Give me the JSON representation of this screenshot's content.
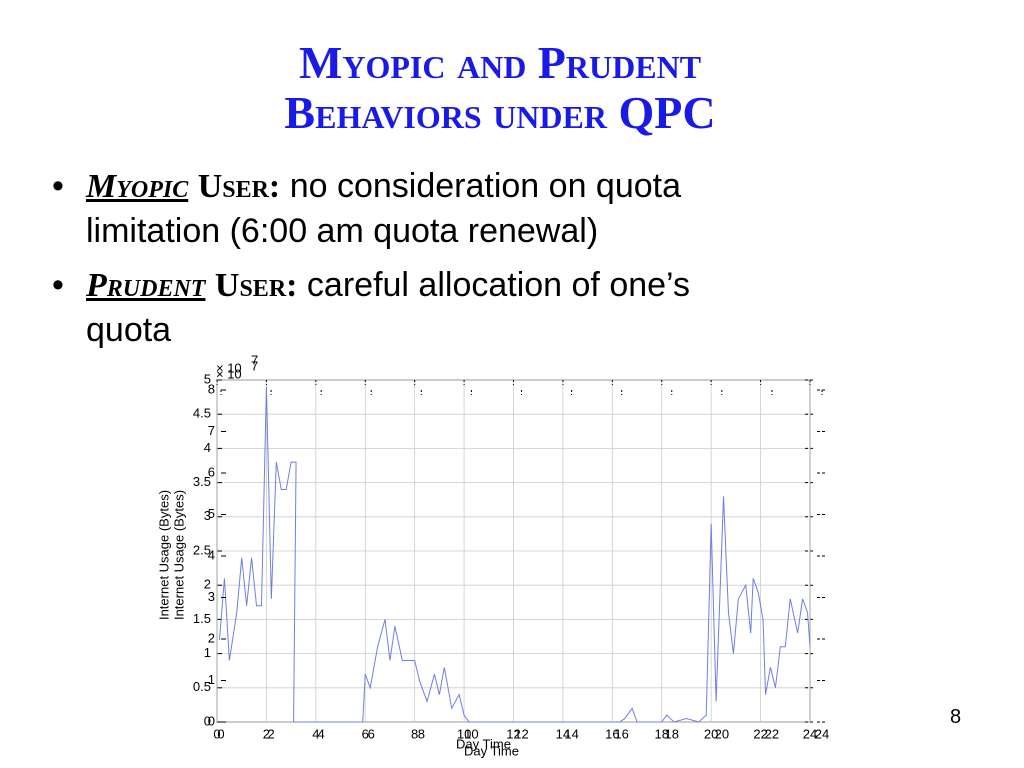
{
  "slide": {
    "title_lines": [
      "Myopic and Prudent",
      "Behaviors under QPC"
    ],
    "bullets": [
      {
        "term": "Myopic",
        "user": "User:",
        "text": " no consideration on quota",
        "text2": "limitation (6:00 am quota renewal)"
      },
      {
        "term": "Prudent",
        "user": "User:",
        "text": " careful allocation of one’s",
        "text2": "quota"
      }
    ],
    "page_number": "8"
  },
  "chart_data": [
    {
      "type": "line",
      "xlabel": "Day Time",
      "ylabel": "Internet Usage (Bytes)",
      "exponent": {
        "base": "× 10",
        "power": "7"
      },
      "color": "#6f7fe0",
      "grid": true,
      "xlim": [
        0,
        24
      ],
      "xticks": [
        0,
        2,
        4,
        6,
        8,
        10,
        12,
        14,
        16,
        18,
        20,
        22,
        24
      ],
      "ylim": [
        0,
        5
      ],
      "yticks": [
        0,
        0.5,
        1,
        1.5,
        2,
        2.5,
        3,
        3.5,
        4,
        4.5,
        5
      ],
      "x": [
        0.1,
        0.3,
        0.5,
        0.8,
        1.0,
        1.2,
        1.4,
        1.6,
        1.8,
        2.0,
        2.2,
        2.4,
        2.6,
        2.8,
        3.0,
        3.2,
        3.1,
        5.9,
        6.0,
        6.2,
        6.5,
        6.8,
        7.0,
        7.2,
        7.5,
        8.0,
        8.2,
        8.5,
        8.8,
        9.0,
        9.2,
        9.5,
        9.8,
        10.0,
        10.2,
        16.3,
        16.5,
        16.8,
        17.0,
        18.0,
        18.2,
        18.5,
        19.0,
        19.5,
        19.8,
        20.0,
        20.2,
        20.5,
        20.7,
        20.9,
        21.1,
        21.4,
        21.6,
        21.7,
        21.9,
        22.1,
        22.2,
        22.4,
        22.6,
        22.8,
        23.0,
        23.2,
        23.5,
        23.7,
        23.9,
        24.0
      ],
      "values": [
        1.2,
        2.1,
        0.9,
        1.6,
        2.4,
        1.7,
        2.4,
        1.7,
        1.7,
        4.9,
        1.8,
        3.8,
        3.4,
        3.4,
        3.8,
        3.8,
        0,
        0,
        0.7,
        0.5,
        1.1,
        1.5,
        0.9,
        1.4,
        0.9,
        0.9,
        0.6,
        0.3,
        0.7,
        0.4,
        0.8,
        0.2,
        0.4,
        0.1,
        0,
        0,
        0.05,
        0.2,
        0,
        0,
        0.1,
        0,
        0.05,
        0,
        0.1,
        2.9,
        0.3,
        3.3,
        1.6,
        1.0,
        1.8,
        2.0,
        1.3,
        2.1,
        1.9,
        1.5,
        0.4,
        0.8,
        0.5,
        1.1,
        1.1,
        1.8,
        1.3,
        1.8,
        1.6,
        1.1
      ]
    },
    {
      "type": "axes",
      "xlabel": "Day Time",
      "ylabel": "Internet Usage (Bytes)",
      "exponent": {
        "base": "× 10",
        "power": "7"
      },
      "xlim": [
        0,
        24
      ],
      "xticks": [
        0,
        2,
        4,
        6,
        8,
        10,
        12,
        14,
        16,
        18,
        20,
        22,
        24
      ],
      "ylim": [
        0,
        8
      ],
      "yticks": [
        0,
        1,
        2,
        3,
        4,
        5,
        6,
        7,
        8
      ]
    }
  ]
}
